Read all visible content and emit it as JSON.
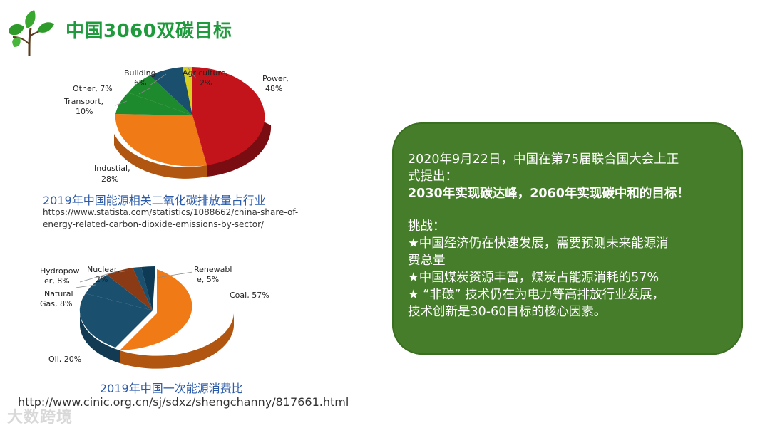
{
  "header": {
    "title": "中国3060双碳目标"
  },
  "chart_top": {
    "caption": "2019年中国能源相关二氧化碳排放量占行业",
    "source_line1": "https://www.statista.com/statistics/1088662/china-share-of-",
    "source_line2": "energy-related-carbon-dioxide-emissions-by-sector/",
    "labels": {
      "power": [
        "Power,",
        "48%"
      ],
      "industrial": [
        "Industial,",
        "28%"
      ],
      "transport": [
        "Transport,",
        "10%"
      ],
      "other": [
        "Other, 7%"
      ],
      "building": [
        "Building",
        "6%"
      ],
      "agriculture": [
        "Agriculture,",
        "2%"
      ]
    }
  },
  "chart_bottom": {
    "caption": "2019年中国一次能源消费比",
    "source": "http://www.cinic.org.cn/sj/sdxz/shengchanny/817661.html",
    "labels": {
      "coal": [
        "Coal, 57%"
      ],
      "oil": [
        "Oil, 20%"
      ],
      "gas": [
        "Natural",
        "Gas, 8%"
      ],
      "hydro": [
        "Hydropow",
        "er, 8%"
      ],
      "nuclear": [
        "Nuclear,",
        "2%"
      ],
      "renewable": [
        "Renewabl",
        "e, 5%"
      ]
    }
  },
  "chart_data": [
    {
      "type": "pie",
      "categories": [
        "Power",
        "Industial",
        "Transport",
        "Other",
        "Building",
        "Agriculture"
      ],
      "values": [
        48,
        28,
        10,
        7,
        6,
        2
      ],
      "colors": [
        "#c3141b",
        "#f07b16",
        "#1e8a2e",
        "#1e8a2e",
        "#1b4f6e",
        "#d8d020"
      ]
    },
    {
      "type": "pie",
      "categories": [
        "Coal",
        "Oil",
        "Natural Gas",
        "Hydropower",
        "Nuclear",
        "Renewable"
      ],
      "values": [
        57,
        20,
        8,
        8,
        2,
        5
      ],
      "colors": [
        "#f07b16",
        "#1b4f6e",
        "#1b4f6e",
        "#8a3a14",
        "#1b4f6e",
        "#0e3a56"
      ]
    }
  ],
  "panel": {
    "line1": "2020年9月22日，中国在第75届联合国大会上正",
    "line2": "式提出：",
    "line3": "2030年实现碳达峰，2060年实现碳中和的目标！",
    "challenge_title": "挑战：",
    "c1a": "★中国经济仍在快速发展，需要预测未来能源消",
    "c1b": "费总量",
    "c2": "★中国煤炭资源丰富，煤炭占能源消耗的57%",
    "c3a": "★ “非碳” 技术仍在为电力等高排放行业发展，",
    "c3b": "技术创新是30-60目标的核心因素。"
  },
  "watermark": "大数跨境"
}
